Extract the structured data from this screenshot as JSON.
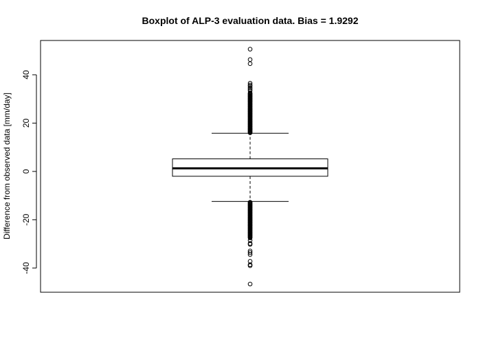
{
  "chart_data": {
    "type": "boxplot",
    "title": "Boxplot of ALP-3 evaluation data. Bias = 1.9292",
    "xlabel": "",
    "ylabel": "Difference from observed data [mm/day]",
    "ylim": [
      -50,
      54.2
    ],
    "yticks": [
      -40,
      -20,
      0,
      20,
      40
    ],
    "grid": false,
    "box": {
      "whisker_low": -12.4,
      "q1": -2.0,
      "median": 1.3,
      "q3": 5.2,
      "whisker_high": 15.8
    },
    "outliers_high_dense_range": [
      16.0,
      32.5
    ],
    "outliers_low_dense_range": [
      -27.5,
      -12.6
    ],
    "outliers": [
      50.6,
      46.3,
      44.6,
      36.5,
      35.8,
      35.3,
      34.6,
      34.0,
      33.4,
      -28.5,
      -29.8,
      -30.2,
      -32.9,
      -33.6,
      -34.4,
      -37.2,
      -38.6,
      -39.0,
      -46.6
    ]
  },
  "colors": {
    "line": "#000000",
    "background": "#ffffff"
  }
}
